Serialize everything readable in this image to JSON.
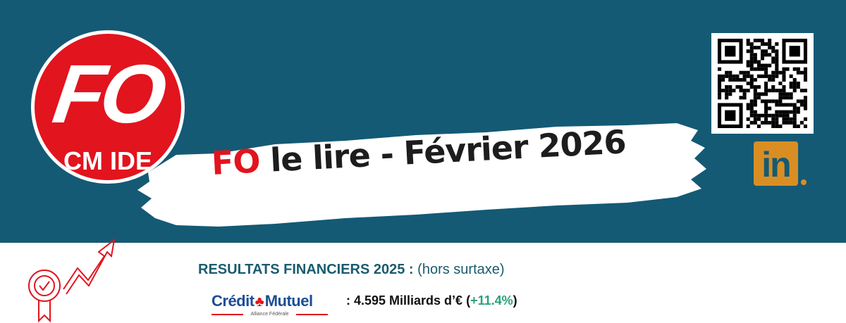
{
  "logo": {
    "main": "FO",
    "sub": "CM IDE",
    "color": "#e2141e"
  },
  "banner": {
    "title_prefix": "FO",
    "title_rest": " le lire - Février 2026",
    "background": "#145a75"
  },
  "qr_code": {
    "icon": "qr-code"
  },
  "linkedin": {
    "label": "in",
    "icon": "linkedin-icon",
    "color": "#d98e24"
  },
  "section": {
    "heading": "RESULTATS FINANCIERS 2025 :",
    "heading_note": "(hors surtaxe)"
  },
  "bank": {
    "name_left": "Crédit",
    "name_right": "Mutuel",
    "tagline": "Alliance Fédérale"
  },
  "result": {
    "prefix": ": 4.595 Milliards d’€ (",
    "change": "+11.4%",
    "suffix": ")"
  }
}
